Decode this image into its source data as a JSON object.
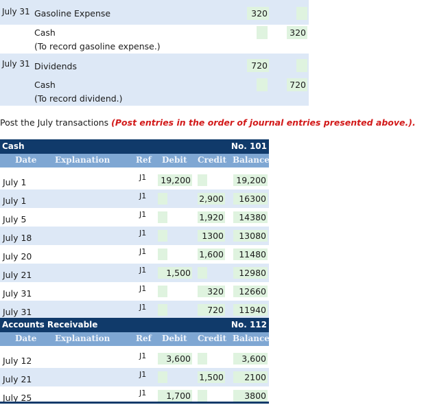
{
  "journal": [
    {
      "date": "July 31",
      "debit_account": "Gasoline Expense",
      "debit_amount": "320",
      "credit_account": "Cash",
      "credit_amount": "320",
      "explanation": "(To record gasoline expense.)"
    },
    {
      "date": "July 31",
      "debit_account": "Dividends",
      "debit_amount": "720",
      "credit_account": "Cash",
      "credit_amount": "720",
      "explanation": "(To record dividend.)"
    }
  ],
  "instruction": {
    "text": "Post the July transactions ",
    "emphasis": "(Post entries in the order of journal entries presented above.)."
  },
  "columns": {
    "date": "Date",
    "explanation": "Explanation",
    "ref": "Ref",
    "debit": "Debit",
    "credit": "Credit",
    "balance": "Balance"
  },
  "ledgers": [
    {
      "title": "Cash",
      "number": "No. 101",
      "rows": [
        {
          "date": "July 1",
          "ref": "J1",
          "debit": "19,200",
          "credit": "",
          "balance": "19,200"
        },
        {
          "date": "July 1",
          "ref": "J1",
          "debit": "",
          "credit": "2,900",
          "balance": "16300"
        },
        {
          "date": "July 5",
          "ref": "J1",
          "debit": "",
          "credit": "1,920",
          "balance": "14380"
        },
        {
          "date": "July 18",
          "ref": "J1",
          "debit": "",
          "credit": "1300",
          "balance": "13080"
        },
        {
          "date": "July 20",
          "ref": "J1",
          "debit": "",
          "credit": "1,600",
          "balance": "11480"
        },
        {
          "date": "July 21",
          "ref": "J1",
          "debit": "1,500",
          "credit": "",
          "balance": "12980"
        },
        {
          "date": "July 31",
          "ref": "J1",
          "debit": "",
          "credit": "320",
          "balance": "12660"
        },
        {
          "date": "July 31",
          "ref": "J1",
          "debit": "",
          "credit": "720",
          "balance": "11940"
        }
      ]
    },
    {
      "title": "Accounts Receivable",
      "number": "No. 112",
      "rows": [
        {
          "date": "July 12",
          "ref": "J1",
          "debit": "3,600",
          "credit": "",
          "balance": "3,600"
        },
        {
          "date": "July 21",
          "ref": "J1",
          "debit": "",
          "credit": "1,500",
          "balance": "2100"
        },
        {
          "date": "July 25",
          "ref": "J1",
          "debit": "1,700",
          "credit": "",
          "balance": "3800"
        }
      ]
    }
  ]
}
